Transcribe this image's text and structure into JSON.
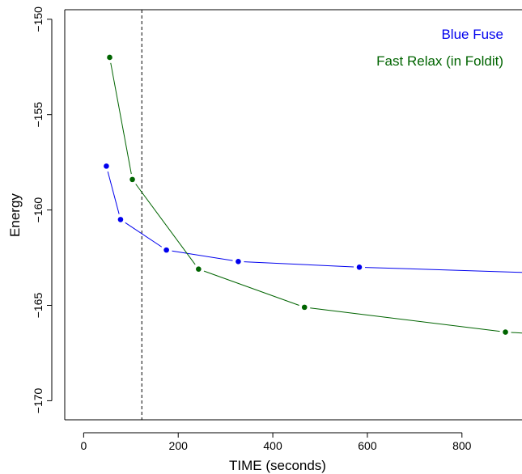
{
  "chart_data": {
    "type": "line",
    "title": "",
    "xlabel": "TIME (seconds)",
    "ylabel": "Energy",
    "xlim": [
      -40,
      927
    ],
    "ylim": [
      -171,
      -149.5
    ],
    "x_ticks": [
      0,
      200,
      400,
      600,
      800
    ],
    "y_ticks": [
      -150,
      -155,
      -160,
      -165,
      -170
    ],
    "vline_x": 123,
    "grid": false,
    "legend_position": "top-right",
    "series": [
      {
        "name": "Blue Fuse",
        "color": "#0000ee",
        "x": [
          48,
          78,
          175,
          327,
          583,
          960
        ],
        "y": [
          -157.7,
          -160.5,
          -162.1,
          -162.7,
          -163.0,
          -163.3
        ]
      },
      {
        "name": "Fast Relax (in Foldit)",
        "color": "#006400",
        "x": [
          55,
          103,
          243,
          467,
          892,
          960
        ],
        "y": [
          -152.0,
          -158.4,
          -163.1,
          -165.1,
          -166.4,
          -166.5
        ]
      }
    ]
  }
}
